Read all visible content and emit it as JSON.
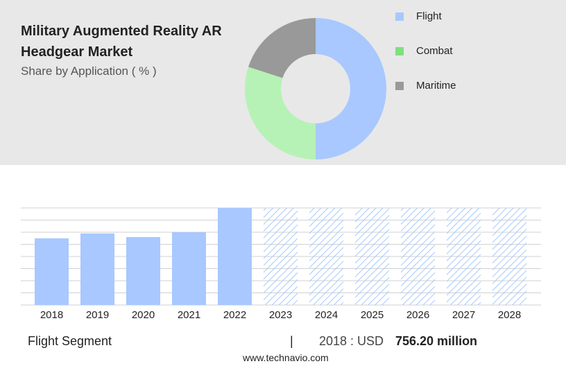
{
  "header": {
    "title": "Military Augmented Reality AR Headgear Market",
    "subtitle": "Share by Application ( % )"
  },
  "chart_data": [
    {
      "type": "pie",
      "donut": true,
      "categories": [
        "Flight",
        "Combat",
        "Maritime"
      ],
      "values": [
        50,
        30,
        20
      ],
      "colors": [
        "#a8c8ff",
        "#b6f2b6",
        "#999999"
      ],
      "legend_colors": [
        "#a8c8ff",
        "#7ee07e",
        "#999999"
      ]
    },
    {
      "type": "bar",
      "categories": [
        "2018",
        "2019",
        "2020",
        "2021",
        "2022",
        "2023",
        "2024",
        "2025",
        "2026",
        "2027",
        "2028"
      ],
      "values": [
        5.5,
        5.9,
        5.6,
        6.0,
        8.0,
        null,
        null,
        null,
        null,
        null,
        null
      ],
      "color": "#a8c8ff",
      "forecast_hatched": true,
      "ylim": [
        0,
        8
      ],
      "yticks": [
        0,
        1,
        2,
        3,
        4,
        5,
        6,
        7,
        8
      ],
      "grid": true
    }
  ],
  "footer": {
    "segment": "Flight Segment",
    "separator": "|",
    "year_label": "2018 : USD",
    "value": "756.20 million",
    "source": "www.technavio.com"
  }
}
